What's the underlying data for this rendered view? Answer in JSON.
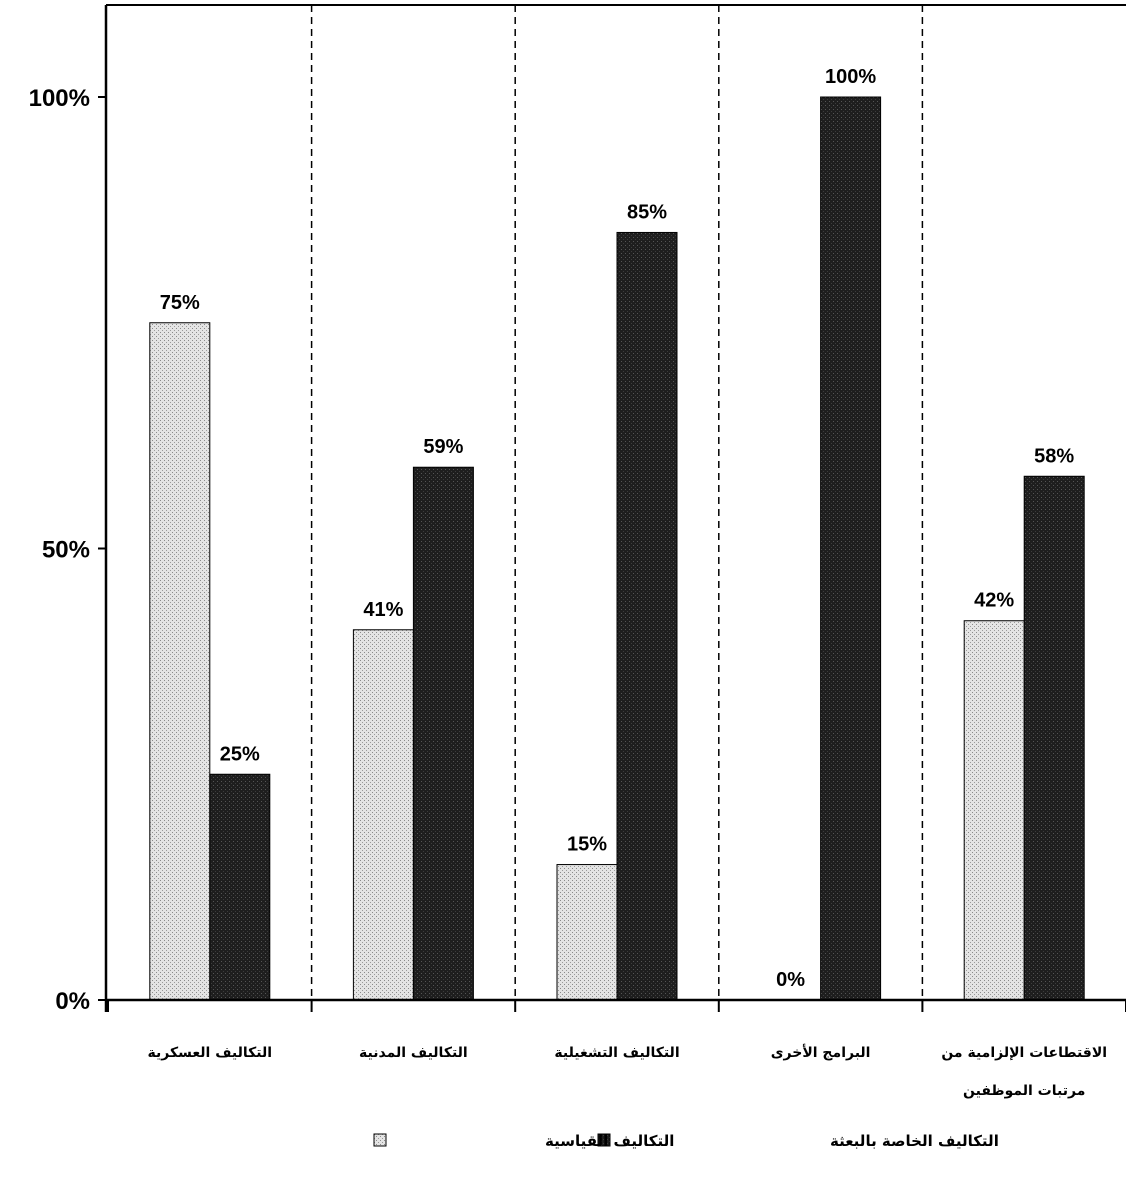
{
  "chart_data": {
    "type": "bar",
    "categories": [
      [
        "التكاليف العسكرية"
      ],
      [
        "التكاليف المدنية"
      ],
      [
        "التكاليف التشغيلية"
      ],
      [
        "البرامج الأخرى"
      ],
      [
        "الاقتطاعات الإلزامية من",
        "مرتبات الموظفين"
      ]
    ],
    "series": [
      {
        "name": "التكاليف القياسية",
        "values": [
          75,
          41,
          15,
          0,
          42
        ],
        "color": "#d6d6d6"
      },
      {
        "name": "التكاليف الخاصة بالبعثة",
        "values": [
          25,
          59,
          85,
          100,
          58
        ],
        "color": "#1a1a1a"
      }
    ],
    "data_labels": [
      [
        "75%",
        "41%",
        "15%",
        "0%",
        "42%"
      ],
      [
        "25%",
        "59%",
        "85%",
        "100%",
        "58%"
      ]
    ],
    "y_ticks": [
      "0%",
      "50%",
      "100%"
    ],
    "y_tick_values": [
      0,
      50,
      100
    ],
    "ylim": [
      0,
      100
    ],
    "grid": false,
    "category_separators": "dashed",
    "legend_position": "bottom"
  }
}
